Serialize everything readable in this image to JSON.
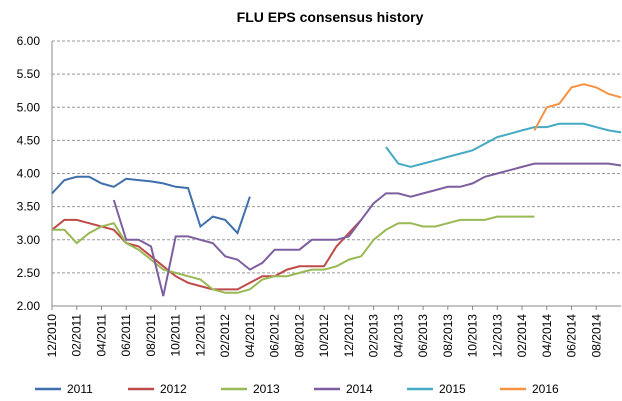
{
  "chart_data": {
    "type": "line",
    "title": "FLU EPS consensus history",
    "categories": [
      "12/2010",
      null,
      "02/2011",
      null,
      "04/2011",
      null,
      "06/2011",
      null,
      "08/2011",
      null,
      "10/2011",
      null,
      "12/2011",
      null,
      "02/2012",
      null,
      "04/2012",
      null,
      "06/2012",
      null,
      "08/2012",
      null,
      "10/2012",
      null,
      "12/2012",
      null,
      "02/2013",
      null,
      "04/2013",
      null,
      "06/2013",
      null,
      "08/2013",
      null,
      "10/2013",
      null,
      "12/2013",
      null,
      "02/2014",
      null,
      "04/2014",
      null,
      "06/2014",
      null,
      "08/2014",
      null,
      null
    ],
    "ylim": [
      2,
      6
    ],
    "yticks": [
      {
        "value": 2,
        "label": "2.00"
      },
      {
        "value": 2.5,
        "label": "2.50"
      },
      {
        "value": 3,
        "label": "3.00"
      },
      {
        "value": 3.5,
        "label": "3.50"
      },
      {
        "value": 4,
        "label": "4.00"
      },
      {
        "value": 4.5,
        "label": "4.50"
      },
      {
        "value": 5,
        "label": "5.00"
      },
      {
        "value": 5.5,
        "label": "5.50"
      },
      {
        "value": 6,
        "label": "6.00"
      }
    ],
    "grid": true,
    "legend": "bottom",
    "series": [
      {
        "name": "2011",
        "color": "#3f6fac",
        "values": [
          3.7,
          3.9,
          3.95,
          3.95,
          3.85,
          3.8,
          3.92,
          3.9,
          3.88,
          3.85,
          3.8,
          3.78,
          3.2,
          3.35,
          3.3,
          3.1,
          3.65,
          null,
          null,
          null,
          null,
          null,
          null,
          null,
          null,
          null,
          null,
          null,
          null,
          null,
          null,
          null,
          null,
          null,
          null,
          null,
          null,
          null,
          null,
          null,
          null,
          null,
          null,
          null,
          null,
          null,
          null
        ]
      },
      {
        "name": "2012",
        "color": "#be4b48",
        "values": [
          3.15,
          3.3,
          3.3,
          3.25,
          3.2,
          3.15,
          2.95,
          2.9,
          2.75,
          2.6,
          2.45,
          2.35,
          2.3,
          2.25,
          2.25,
          2.25,
          2.35,
          2.45,
          2.45,
          2.55,
          2.6,
          2.6,
          2.6,
          2.9,
          3.1,
          3.3,
          null,
          null,
          null,
          null,
          null,
          null,
          null,
          null,
          null,
          null,
          null,
          null,
          null,
          null,
          null,
          null,
          null,
          null,
          null,
          null,
          null
        ]
      },
      {
        "name": "2013",
        "color": "#98b954",
        "values": [
          3.15,
          3.15,
          2.95,
          3.1,
          3.2,
          3.25,
          2.95,
          2.85,
          2.7,
          2.55,
          2.5,
          2.45,
          2.4,
          2.25,
          2.2,
          2.2,
          2.25,
          2.4,
          2.45,
          2.45,
          2.5,
          2.55,
          2.55,
          2.6,
          2.7,
          2.75,
          3.0,
          3.15,
          3.25,
          3.25,
          3.2,
          3.2,
          3.25,
          3.3,
          3.3,
          3.3,
          3.35,
          3.35,
          3.35,
          3.35,
          null,
          null,
          null,
          null,
          null,
          null,
          null
        ]
      },
      {
        "name": "2014",
        "color": "#7d5fa0",
        "values": [
          null,
          null,
          null,
          null,
          null,
          3.6,
          3.0,
          3.0,
          2.9,
          2.15,
          3.05,
          3.05,
          3.0,
          2.95,
          2.75,
          2.7,
          2.55,
          2.65,
          2.85,
          2.85,
          2.85,
          3.0,
          3.0,
          3.0,
          3.05,
          3.3,
          3.55,
          3.7,
          3.7,
          3.65,
          3.7,
          3.75,
          3.8,
          3.8,
          3.85,
          3.95,
          4.0,
          4.05,
          4.1,
          4.15,
          4.15,
          4.15,
          4.15,
          4.15,
          4.15,
          4.15,
          4.12
        ]
      },
      {
        "name": "2015",
        "color": "#46aac5",
        "values": [
          null,
          null,
          null,
          null,
          null,
          null,
          null,
          null,
          null,
          null,
          null,
          null,
          null,
          null,
          null,
          null,
          null,
          null,
          null,
          null,
          null,
          null,
          null,
          null,
          null,
          null,
          null,
          4.4,
          4.15,
          4.1,
          4.15,
          4.2,
          4.25,
          4.3,
          4.35,
          4.45,
          4.55,
          4.6,
          4.65,
          4.7,
          4.7,
          4.75,
          4.75,
          4.75,
          4.7,
          4.65,
          4.62
        ]
      },
      {
        "name": "2016",
        "color": "#f59343",
        "values": [
          null,
          null,
          null,
          null,
          null,
          null,
          null,
          null,
          null,
          null,
          null,
          null,
          null,
          null,
          null,
          null,
          null,
          null,
          null,
          null,
          null,
          null,
          null,
          null,
          null,
          null,
          null,
          null,
          null,
          null,
          null,
          null,
          null,
          null,
          null,
          null,
          null,
          null,
          null,
          4.65,
          5.0,
          5.05,
          5.3,
          5.35,
          5.3,
          5.2,
          5.15
        ]
      }
    ]
  }
}
